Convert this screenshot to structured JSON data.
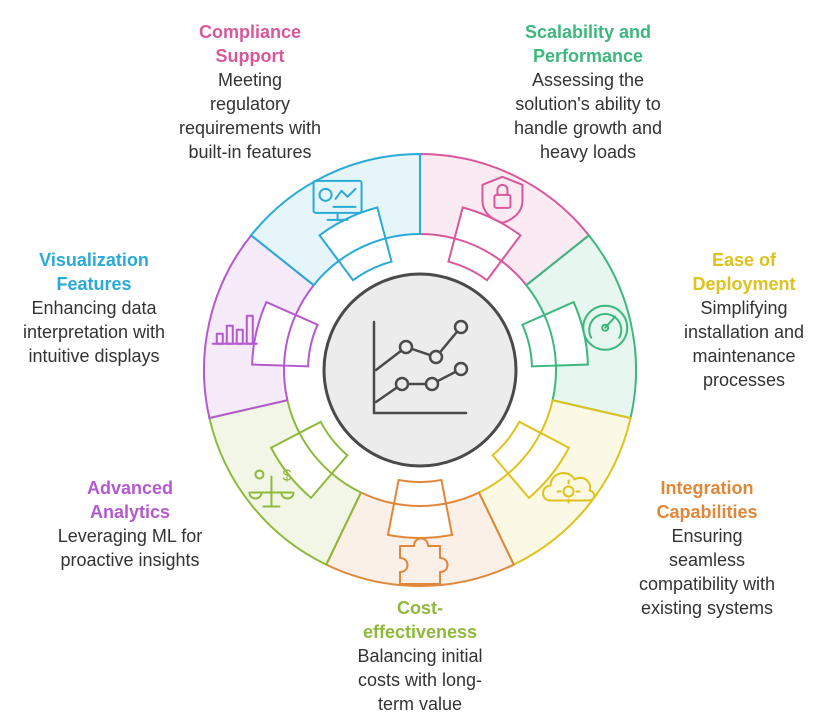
{
  "colors": {
    "compliance": "#d9579a",
    "scalability": "#3cb87e",
    "deployment": "#dfc21c",
    "integration": "#e0873a",
    "cost": "#8fb93b",
    "analytics": "#b459cf",
    "visualization": "#2aaad6",
    "hub": "#4a4a4a"
  },
  "center_icon": "chart-line-icon",
  "segments": [
    {
      "key": "compliance",
      "title": "Compliance\nSupport",
      "desc": "Meeting\nregulatory\nrequirements with\nbuilt-in features",
      "icon": "lock-shield-icon"
    },
    {
      "key": "scalability",
      "title": "Scalability and\nPerformance",
      "desc": "Assessing the\nsolution's ability to\nhandle growth and\nheavy loads",
      "icon": "speedometer-icon"
    },
    {
      "key": "deployment",
      "title": "Ease of\nDeployment",
      "desc": "Simplifying\ninstallation and\nmaintenance\nprocesses",
      "icon": "cloud-gear-icon"
    },
    {
      "key": "integration",
      "title": "Integration\nCapabilities",
      "desc": "Ensuring\nseamless\ncompatibility with\nexisting systems",
      "icon": "puzzle-icon"
    },
    {
      "key": "cost",
      "title": "Cost-\neffectiveness",
      "desc": "Balancing initial\ncosts with long-\nterm value",
      "icon": "balance-scale-icon"
    },
    {
      "key": "analytics",
      "title": "Advanced\nAnalytics",
      "desc": "Leveraging ML for\nproactive insights",
      "icon": "bar-chart-icon"
    },
    {
      "key": "visualization",
      "title": "Visualization\nFeatures",
      "desc": "Enhancing data\ninterpretation with\nintuitive displays",
      "icon": "dashboard-monitor-icon"
    }
  ]
}
